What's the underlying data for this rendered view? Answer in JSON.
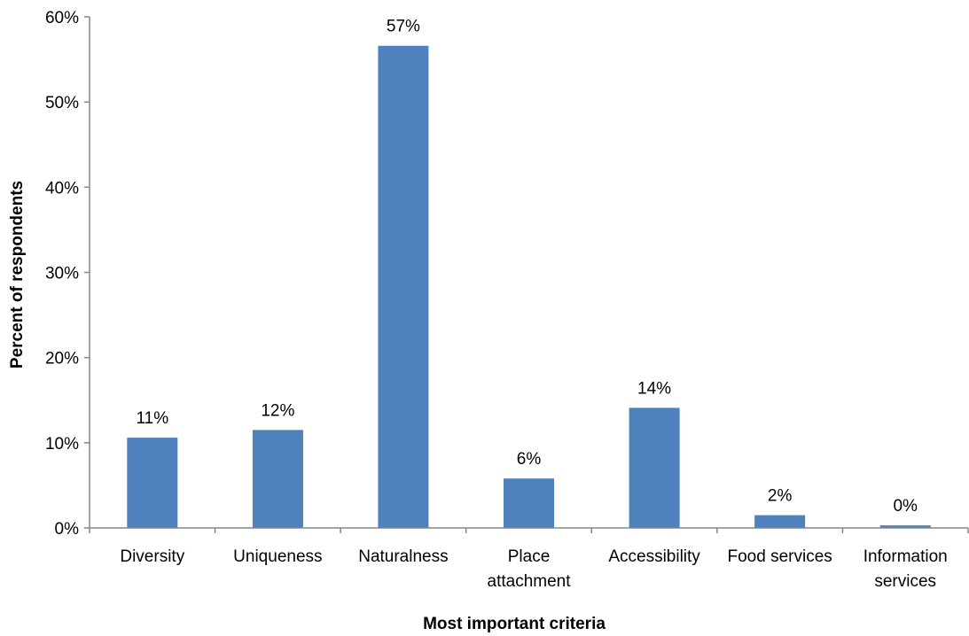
{
  "chart_data": {
    "type": "bar",
    "title": "",
    "xlabel": "Most important criteria",
    "ylabel": "Percent of respondents",
    "categories": [
      [
        "Diversity"
      ],
      [
        "Uniqueness"
      ],
      [
        "Naturalness"
      ],
      [
        "Place",
        "attachment"
      ],
      [
        "Accessibility"
      ],
      [
        "Food services"
      ],
      [
        "Information",
        "services"
      ]
    ],
    "values": [
      10.6,
      11.5,
      56.6,
      5.8,
      14.1,
      1.5,
      0.3
    ],
    "data_labels": [
      "11%",
      "12%",
      "57%",
      "6%",
      "14%",
      "2%",
      "0%"
    ],
    "ylim": [
      0,
      60
    ],
    "yticks": [
      0,
      10,
      20,
      30,
      40,
      50,
      60
    ],
    "ytick_labels": [
      "0%",
      "10%",
      "20%",
      "30%",
      "40%",
      "50%",
      "60%"
    ],
    "grid": false,
    "legend": "none",
    "colors": {
      "bar": "#4F81BD",
      "axis": "#868686"
    }
  }
}
